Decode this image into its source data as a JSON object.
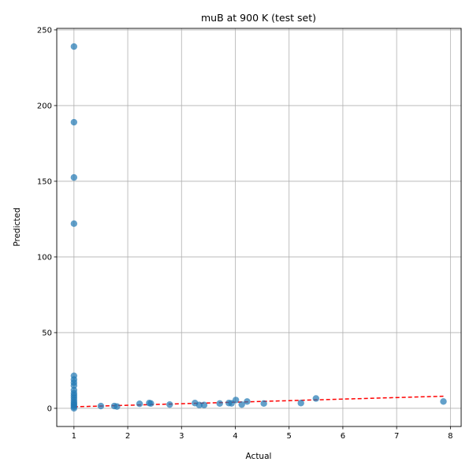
{
  "chart_data": {
    "type": "scatter",
    "title": "muB at 900 K (test set)",
    "xlabel": "Actual",
    "ylabel": "Predicted",
    "xlim": [
      0.68,
      8.2
    ],
    "ylim": [
      -12,
      251
    ],
    "x_ticks": [
      1,
      2,
      3,
      4,
      5,
      6,
      7,
      8
    ],
    "y_ticks": [
      0,
      50,
      100,
      150,
      200,
      250
    ],
    "grid": true,
    "point_color": "#1f77b4",
    "fit_line_color": "#ff0000",
    "points": [
      {
        "x": 1.0,
        "y": 239
      },
      {
        "x": 1.0,
        "y": 189
      },
      {
        "x": 1.0,
        "y": 152.5
      },
      {
        "x": 1.0,
        "y": 122
      },
      {
        "x": 1.0,
        "y": 21.5
      },
      {
        "x": 1.0,
        "y": 19
      },
      {
        "x": 1.0,
        "y": 17
      },
      {
        "x": 1.0,
        "y": 15
      },
      {
        "x": 1.0,
        "y": 12
      },
      {
        "x": 1.0,
        "y": 10
      },
      {
        "x": 1.0,
        "y": 8.5
      },
      {
        "x": 1.0,
        "y": 7
      },
      {
        "x": 1.0,
        "y": 5.5
      },
      {
        "x": 1.0,
        "y": 4
      },
      {
        "x": 1.0,
        "y": 3
      },
      {
        "x": 1.0,
        "y": 2
      },
      {
        "x": 1.0,
        "y": 1
      },
      {
        "x": 1.0,
        "y": 0
      },
      {
        "x": 1.5,
        "y": 1.5
      },
      {
        "x": 1.75,
        "y": 1.5
      },
      {
        "x": 1.8,
        "y": 1.2
      },
      {
        "x": 2.22,
        "y": 3
      },
      {
        "x": 2.4,
        "y": 3.5
      },
      {
        "x": 2.43,
        "y": 3.2
      },
      {
        "x": 2.78,
        "y": 2.5
      },
      {
        "x": 3.25,
        "y": 3.5
      },
      {
        "x": 3.33,
        "y": 2.2
      },
      {
        "x": 3.42,
        "y": 2.2
      },
      {
        "x": 3.71,
        "y": 3.2
      },
      {
        "x": 3.88,
        "y": 3.5
      },
      {
        "x": 3.93,
        "y": 3.3
      },
      {
        "x": 4.01,
        "y": 5.5
      },
      {
        "x": 4.12,
        "y": 2.5
      },
      {
        "x": 4.22,
        "y": 4.5
      },
      {
        "x": 4.53,
        "y": 3.2
      },
      {
        "x": 5.22,
        "y": 3.5
      },
      {
        "x": 5.5,
        "y": 6.5
      },
      {
        "x": 7.87,
        "y": 4.5
      }
    ],
    "fit_line": {
      "x": [
        1.0,
        7.87
      ],
      "y": [
        1.0,
        8.0
      ]
    }
  }
}
